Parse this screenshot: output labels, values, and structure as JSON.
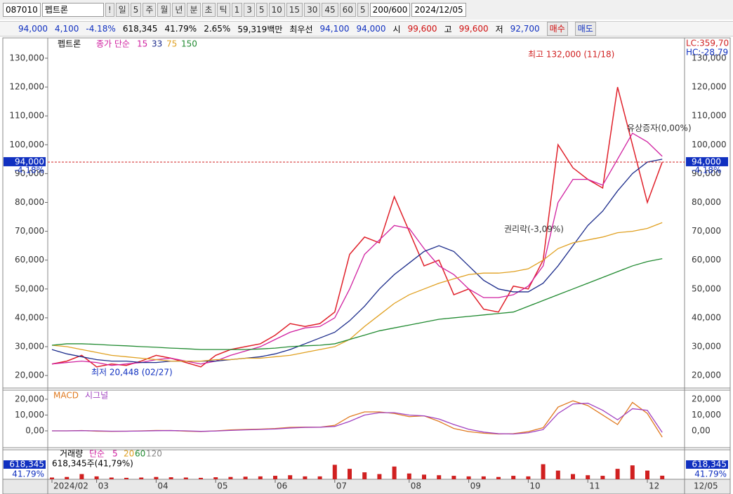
{
  "toolbar": {
    "code": "087010",
    "name": "펩트론",
    "items": [
      "!",
      "일",
      "5",
      "주",
      "월",
      "년",
      "분",
      "초",
      "틱",
      "1",
      "3",
      "5",
      "10",
      "15",
      "30",
      "45",
      "60",
      "5"
    ],
    "count": "200/600",
    "date": "2024/12/05"
  },
  "info": {
    "price": "94,000",
    "change": "4,100",
    "rate": "-4.18%",
    "volume": "618,345",
    "vol_rate": "41.79%",
    "turnover": "2.65%",
    "amount": "59,319백만",
    "best_label": "최우선",
    "best_ask": "94,100",
    "best_bid": "94,000",
    "open_label": "시",
    "open": "99,600",
    "high_label": "고",
    "high": "99,600",
    "low_label": "저",
    "low": "92,700",
    "buy": "매수",
    "sell": "매도"
  },
  "chart_data": [
    {
      "type": "line",
      "name": "펩트론",
      "ma_label": "종가 단순",
      "categories": [
        "2024/02",
        null,
        null,
        "03",
        null,
        null,
        null,
        "04",
        null,
        null,
        null,
        "05",
        null,
        null,
        null,
        "06",
        null,
        null,
        null,
        "07",
        null,
        null,
        null,
        null,
        "08",
        null,
        null,
        null,
        "09",
        null,
        null,
        null,
        "10",
        null,
        null,
        null,
        "11",
        null,
        null,
        null,
        "12",
        null
      ],
      "series": [
        {
          "name": "펩트론",
          "color": "#e0202a",
          "values": [
            24000,
            25000,
            27000,
            23000,
            24000,
            23500,
            25000,
            27000,
            26000,
            24500,
            23000,
            27000,
            29000,
            30000,
            31000,
            34000,
            38000,
            37000,
            38000,
            42000,
            62000,
            68000,
            66000,
            82000,
            70000,
            58000,
            60000,
            48000,
            50000,
            43000,
            42000,
            51000,
            50000,
            60000,
            100000,
            92000,
            88000,
            85000,
            120000,
            100000,
            80000,
            94000
          ]
        },
        {
          "name": "15",
          "color": "#d020a0",
          "values": [
            24000,
            24500,
            25000,
            24500,
            23500,
            24000,
            24500,
            25500,
            26000,
            25000,
            24000,
            25000,
            27000,
            28500,
            30000,
            32500,
            35000,
            36500,
            37000,
            40000,
            50000,
            62000,
            67000,
            72000,
            71000,
            64000,
            58000,
            55000,
            50000,
            47000,
            47000,
            48000,
            51000,
            58000,
            80000,
            88000,
            88000,
            86000,
            95000,
            104000,
            101000,
            96000
          ]
        },
        {
          "name": "33",
          "color": "#1a2a8a",
          "values": [
            29000,
            27500,
            26500,
            25500,
            25000,
            25000,
            24500,
            24500,
            25000,
            25000,
            25000,
            25000,
            25500,
            26000,
            26500,
            27500,
            29000,
            31000,
            33000,
            35000,
            39000,
            44000,
            50000,
            55000,
            59000,
            63000,
            65000,
            63000,
            58000,
            53000,
            50000,
            49000,
            49000,
            52000,
            58000,
            65000,
            72000,
            77000,
            84000,
            90000,
            94000,
            95000
          ]
        },
        {
          "name": "75",
          "color": "#e0a020",
          "values": [
            30500,
            30000,
            29000,
            28000,
            27000,
            26500,
            26000,
            25500,
            25000,
            25000,
            25000,
            25500,
            25500,
            26000,
            26000,
            26500,
            27000,
            28000,
            29000,
            30000,
            32500,
            37000,
            41000,
            45000,
            48000,
            50000,
            52000,
            53500,
            55000,
            55500,
            55500,
            56000,
            57000,
            60000,
            64000,
            66000,
            67000,
            68000,
            69500,
            70000,
            71000,
            73000
          ]
        },
        {
          "name": "150",
          "color": "#208a30",
          "values": [
            30500,
            31000,
            31000,
            30800,
            30500,
            30300,
            30000,
            29800,
            29500,
            29300,
            29000,
            29000,
            29000,
            29000,
            29200,
            29500,
            30000,
            30300,
            30500,
            31000,
            32500,
            34000,
            35500,
            36500,
            37500,
            38500,
            39500,
            40000,
            40500,
            41000,
            41500,
            42000,
            44000,
            46000,
            48000,
            50000,
            52000,
            54000,
            56000,
            58000,
            59500,
            60500
          ]
        }
      ],
      "ylim": [
        15900,
        136800
      ],
      "yticks": [
        {
          "value": 20000,
          "label": "20,000"
        },
        {
          "value": 30000,
          "label": "30,000"
        },
        {
          "value": 40000,
          "label": "40,000"
        },
        {
          "value": 50000,
          "label": "50,000"
        },
        {
          "value": 60000,
          "label": "60,000"
        },
        {
          "value": 70000,
          "label": "70,000"
        },
        {
          "value": 80000,
          "label": "80,000"
        },
        {
          "value": 90000,
          "label": "90,000"
        },
        {
          "value": 100000,
          "label": "100,000"
        },
        {
          "value": 110000,
          "label": "110,000"
        },
        {
          "value": 120000,
          "label": "120,000"
        },
        {
          "value": 130000,
          "label": "130,000"
        }
      ],
      "current": {
        "value": 94000,
        "label": "94,000",
        "rate": "-4.18%"
      },
      "annotations": [
        "최고 132,000 (11/18)",
        "최저 20,448 (02/27)",
        "권리락(-3,09%)",
        "유상증자(0,00%)",
        "LC:359,70",
        "HC:-28,79"
      ],
      "end_date": "12/05"
    },
    {
      "type": "line",
      "series": [
        {
          "name": "MACD",
          "color": "#e07a20",
          "values": [
            0,
            0,
            200,
            -200,
            -300,
            -200,
            0,
            300,
            200,
            -200,
            -400,
            0,
            600,
            900,
            1100,
            1500,
            2200,
            2400,
            2300,
            3500,
            9000,
            12000,
            12000,
            11000,
            9000,
            9500,
            6000,
            1500,
            -500,
            -1500,
            -2000,
            -1800,
            -500,
            2000,
            15000,
            19000,
            16000,
            10000,
            4000,
            18000,
            11000,
            -4000
          ]
        },
        {
          "name": "시그널",
          "color": "#a040c0",
          "values": [
            0,
            0,
            100,
            0,
            -200,
            -200,
            -100,
            100,
            200,
            0,
            -300,
            -100,
            300,
            600,
            900,
            1200,
            1800,
            2200,
            2300,
            2800,
            6000,
            10000,
            11500,
            11500,
            10000,
            9500,
            7500,
            4000,
            1000,
            -800,
            -1800,
            -2000,
            -1200,
            800,
            11000,
            17000,
            17500,
            13000,
            7000,
            14000,
            13000,
            -1000
          ]
        }
      ],
      "ylim": [
        -10200,
        25300
      ],
      "yticks": [
        {
          "value": 20000,
          "label": "20,000"
        },
        {
          "value": 10000,
          "label": "10,000"
        },
        {
          "value": 0,
          "label": "0,00"
        }
      ]
    },
    {
      "type": "bar",
      "legend": [
        "거래량",
        "단순",
        "5",
        "20",
        "60",
        "120"
      ],
      "note": "618,345주(41,79%)",
      "value_label": "618,345",
      "rate_label": "41.79%",
      "color": "#d02020",
      "values": [
        300000,
        400000,
        900000,
        500000,
        300000,
        250000,
        300000,
        400000,
        350000,
        300000,
        250000,
        350000,
        400000,
        450000,
        500000,
        600000,
        700000,
        500000,
        500000,
        2500000,
        1800000,
        1200000,
        900000,
        2200000,
        1000000,
        800000,
        700000,
        600000,
        500000,
        500000,
        400000,
        600000,
        500000,
        2600000,
        1500000,
        900000,
        700000,
        600000,
        1800000,
        2400000,
        1500000,
        618345
      ],
      "ylim": [
        0,
        4000000
      ]
    }
  ]
}
